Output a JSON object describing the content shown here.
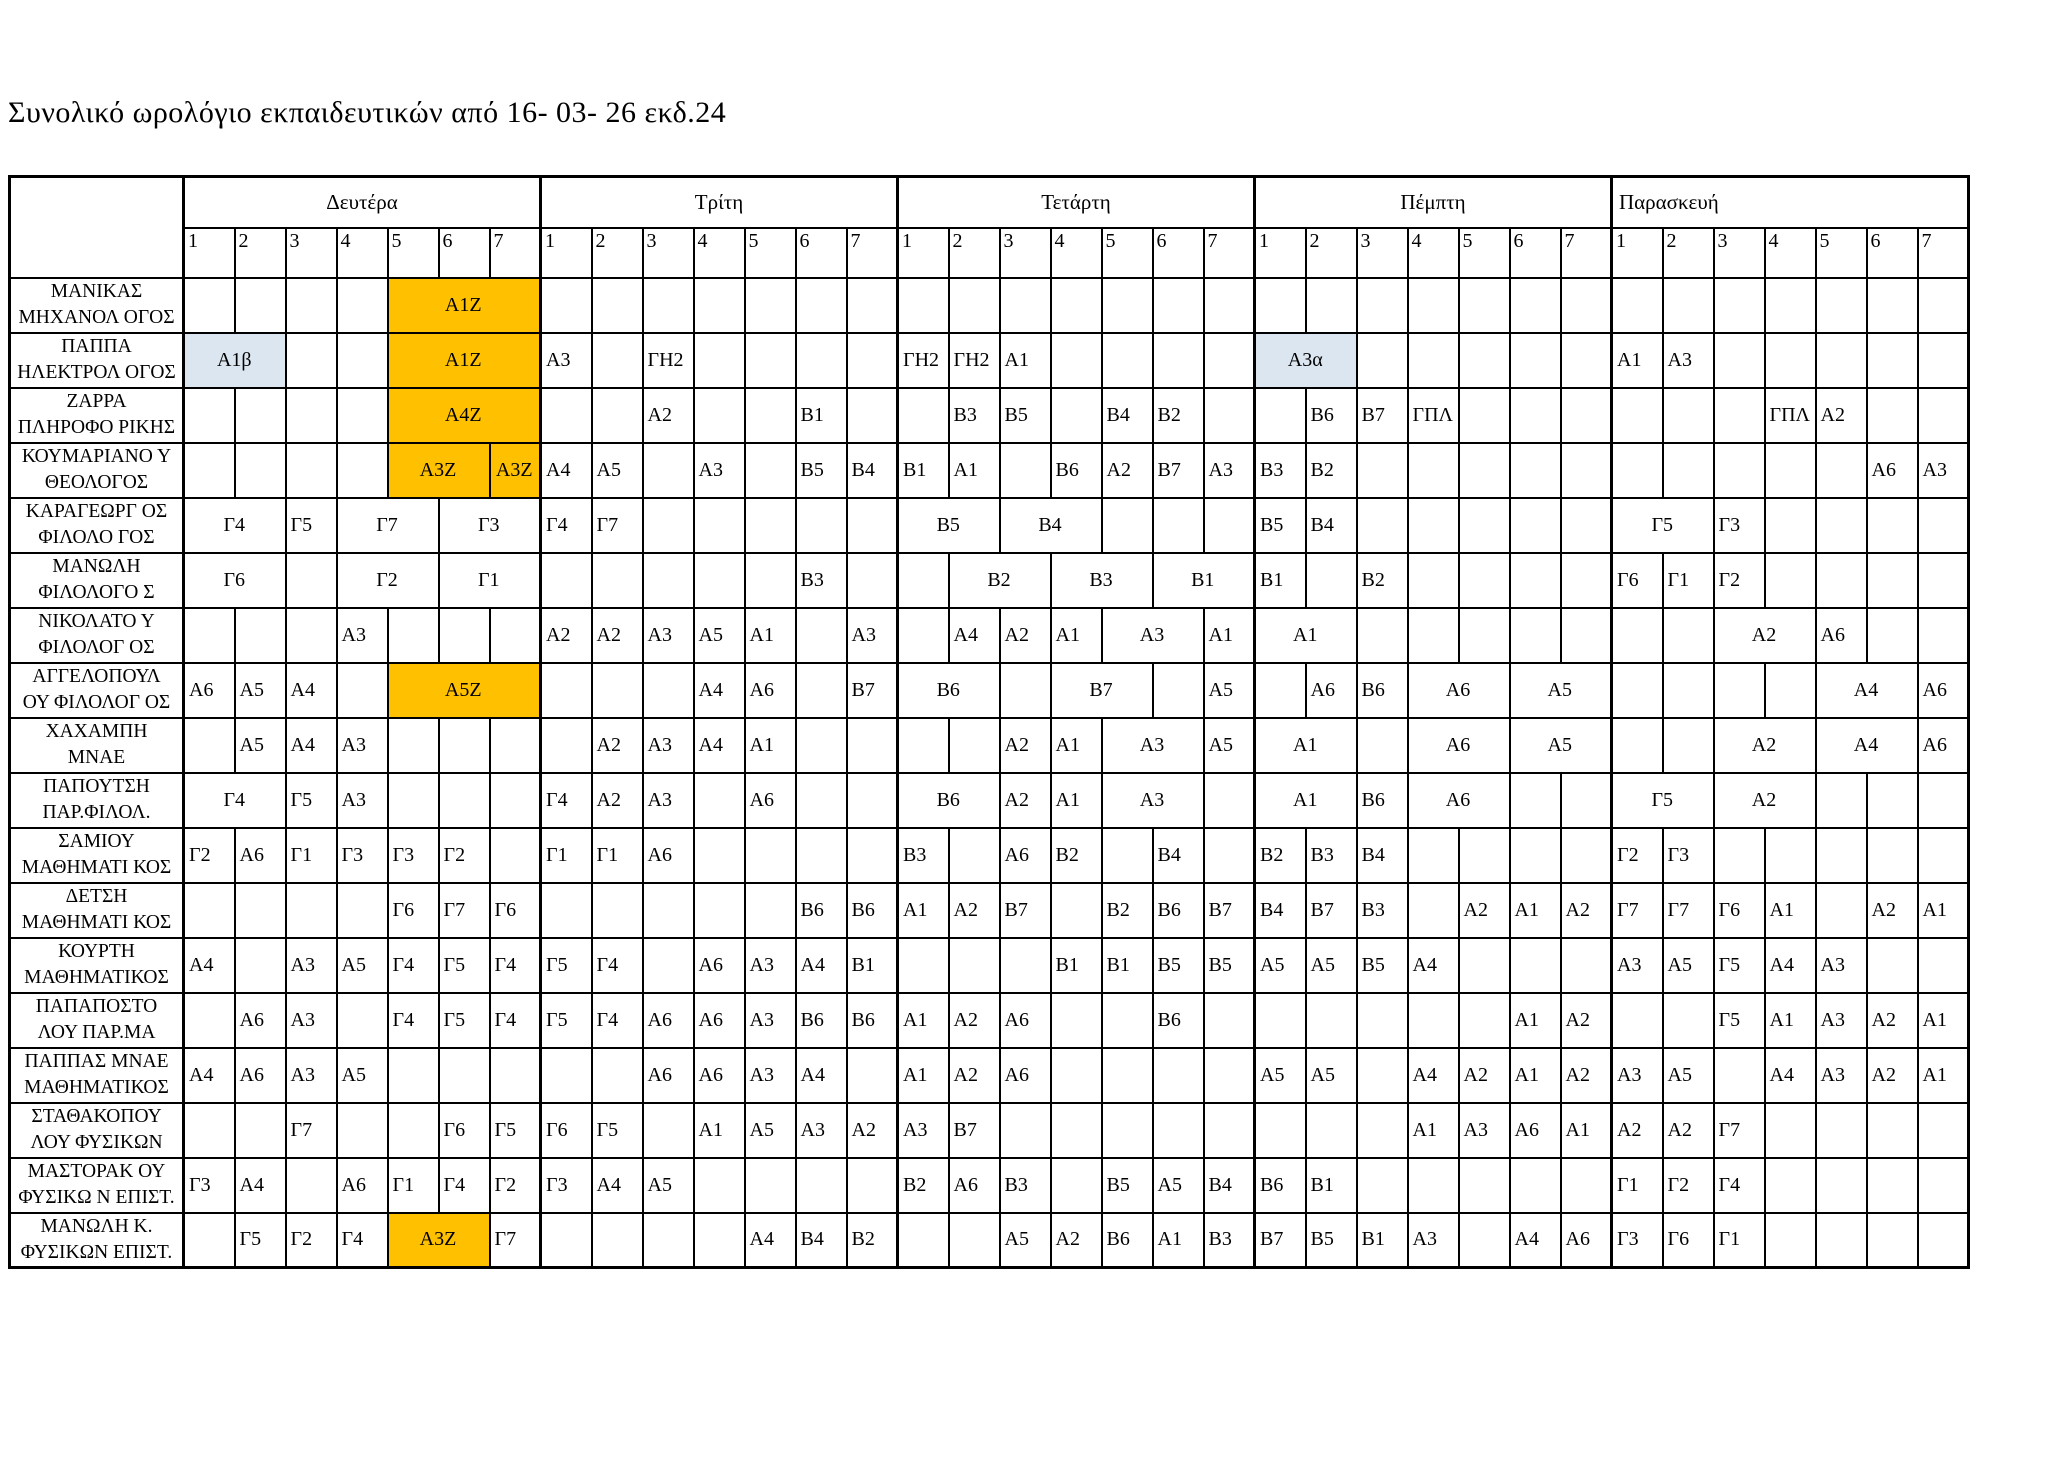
{
  "title": "Συνολικό ωρολόγιο εκπαιδευτικών από 16- 03- 26 εκδ.24",
  "colors": {
    "orange": "#FFC000",
    "blue": "#DCE6F1"
  },
  "days": [
    "Δευτέρα",
    "Τρίτη",
    "Τετάρτη",
    "Πέμπτη",
    "Παρασκευή"
  ],
  "periods": [
    "1",
    "2",
    "3",
    "4",
    "5",
    "6",
    "7"
  ],
  "teachers": [
    {
      "name": [
        "ΜΑΝΙΚΑΣ",
        "ΜΗΧΑΝΟΛ ΟΓΟΣ"
      ],
      "days": [
        [
          "",
          "",
          "",
          "",
          [
            "Α1Ζ",
            3,
            "orange"
          ]
        ],
        [
          "",
          "",
          "",
          "",
          "",
          "",
          ""
        ],
        [
          "",
          "",
          "",
          "",
          "",
          "",
          ""
        ],
        [
          "",
          "",
          "",
          "",
          "",
          "",
          ""
        ],
        [
          "",
          "",
          "",
          "",
          "",
          "",
          ""
        ]
      ]
    },
    {
      "name": [
        "ΠΑΠΠΑ",
        "ΗΛΕΚΤΡΟΛ ΟΓΟΣ"
      ],
      "days": [
        [
          [
            "Α1β",
            2,
            "blue"
          ],
          "",
          "",
          [
            "Α1Ζ",
            3,
            "orange"
          ]
        ],
        [
          "Α3",
          "",
          "ΓΗ2",
          "",
          "",
          "",
          ""
        ],
        [
          "ΓΗ2",
          "ΓΗ2",
          "Α1",
          "",
          "",
          "",
          ""
        ],
        [
          [
            "Α3α",
            2,
            "blue"
          ],
          "",
          "",
          "",
          "",
          ""
        ],
        [
          "Α1",
          "Α3",
          "",
          "",
          "",
          "",
          ""
        ]
      ]
    },
    {
      "name": [
        "ΖΑΡΡΑ",
        "ΠΛΗΡΟΦΟ ΡΙΚΗΣ"
      ],
      "days": [
        [
          "",
          "",
          "",
          "",
          [
            "Α4Ζ",
            3,
            "orange"
          ]
        ],
        [
          "",
          "",
          "Α2",
          "",
          "",
          "Β1",
          ""
        ],
        [
          "",
          "Β3",
          "Β5",
          "",
          "Β4",
          "Β2",
          ""
        ],
        [
          "",
          "Β6",
          "Β7",
          "ΓΠΛ",
          "",
          "",
          ""
        ],
        [
          "",
          "",
          "",
          "ΓΠΛ",
          "Α2",
          "",
          ""
        ]
      ]
    },
    {
      "name": [
        "ΚΟΥΜΑΡΙΑΝΟ Υ",
        "ΘΕΟΛΟΓΟΣ"
      ],
      "days": [
        [
          "",
          "",
          "",
          "",
          [
            "Α3Ζ",
            2,
            "orange"
          ],
          [
            "Α3Ζ",
            1,
            "orange"
          ]
        ],
        [
          "Α4",
          "Α5",
          "",
          "Α3",
          "",
          "Β5",
          "Β4"
        ],
        [
          "Β1",
          "Α1",
          "",
          "Β6",
          "Α2",
          "Β7",
          "Α3"
        ],
        [
          "Β3",
          "Β2",
          "",
          "",
          "",
          "",
          ""
        ],
        [
          "",
          "",
          "",
          "",
          "",
          "Α6",
          "Α3"
        ]
      ]
    },
    {
      "name": [
        "ΚΑΡΑΓΕΩΡΓ ΟΣ",
        "ΦΙΛΟΛΟ ΓΟΣ"
      ],
      "days": [
        [
          [
            "Γ4",
            2
          ],
          "Γ5",
          [
            "Γ7",
            2
          ],
          [
            "Γ3",
            2
          ]
        ],
        [
          "Γ4",
          "Γ7",
          "",
          "",
          "",
          "",
          ""
        ],
        [
          [
            "Β5",
            2
          ],
          [
            "Β4",
            2
          ],
          "",
          "",
          ""
        ],
        [
          "Β5",
          "Β4",
          "",
          "",
          "",
          "",
          ""
        ],
        [
          [
            "Γ5",
            2
          ],
          "Γ3",
          "",
          "",
          "",
          ""
        ]
      ]
    },
    {
      "name": [
        "ΜΑΝΩΛΗ",
        "ΦΙΛΟΛΟΓΟ Σ"
      ],
      "days": [
        [
          [
            "Γ6",
            2
          ],
          "",
          [
            "Γ2",
            2
          ],
          [
            "Γ1",
            2
          ]
        ],
        [
          "",
          "",
          "",
          "",
          "",
          "Β3",
          ""
        ],
        [
          "",
          [
            "Β2",
            2
          ],
          [
            "Β3",
            2
          ],
          [
            "Β1",
            2
          ]
        ],
        [
          "Β1",
          "",
          "Β2",
          "",
          "",
          "",
          ""
        ],
        [
          "Γ6",
          "Γ1",
          "Γ2",
          "",
          "",
          "",
          ""
        ]
      ]
    },
    {
      "name": [
        "ΝΙΚΟΛΑΤΟ Υ",
        "ΦΙΛΟΛΟΓ ΟΣ"
      ],
      "days": [
        [
          "",
          "",
          "",
          "Α3",
          "",
          "",
          ""
        ],
        [
          "Α2",
          "Α2",
          "Α3",
          "Α5",
          "Α1",
          "",
          "Α3"
        ],
        [
          "",
          "Α4",
          "Α2",
          "Α1",
          [
            "Α3",
            2
          ],
          "Α1"
        ],
        [
          [
            "Α1",
            2
          ],
          "",
          "",
          "",
          "",
          ""
        ],
        [
          "",
          "",
          [
            "Α2",
            2
          ],
          "Α6",
          "",
          ""
        ]
      ]
    },
    {
      "name": [
        "ΑΓΓΕΛΟΠΟΥΛ",
        "ΟΥ ΦΙΛΟΛΟΓ ΟΣ"
      ],
      "days": [
        [
          "Α6",
          "Α5",
          "Α4",
          "",
          [
            "Α5Ζ",
            3,
            "orange"
          ]
        ],
        [
          "",
          "",
          "",
          "Α4",
          "Α6",
          "",
          "Β7"
        ],
        [
          [
            "Β6",
            2
          ],
          "",
          [
            "Β7",
            2
          ],
          "",
          "Α5"
        ],
        [
          "",
          "Α6",
          "Β6",
          [
            "Α6",
            2
          ],
          [
            "Α5",
            2
          ]
        ],
        [
          "",
          "",
          "",
          "",
          [
            "Α4",
            2
          ],
          "Α6"
        ]
      ]
    },
    {
      "name": [
        "ΧΑΧΑΜΠΗ",
        "ΜΝΑΕ"
      ],
      "days": [
        [
          "",
          "Α5",
          "Α4",
          "Α3",
          "",
          "",
          ""
        ],
        [
          "",
          "Α2",
          "Α3",
          "Α4",
          "Α1",
          "",
          ""
        ],
        [
          "",
          "",
          "Α2",
          "Α1",
          [
            "Α3",
            2
          ],
          "Α5"
        ],
        [
          [
            "Α1",
            2
          ],
          "",
          [
            "Α6",
            2
          ],
          [
            "Α5",
            2
          ]
        ],
        [
          "",
          "",
          [
            "Α2",
            2
          ],
          [
            "Α4",
            2
          ],
          "Α6"
        ]
      ]
    },
    {
      "name": [
        "ΠΑΠΟΥΤΣΗ",
        "ΠΑΡ.ΦΙΛΟΛ."
      ],
      "days": [
        [
          [
            "Γ4",
            2
          ],
          "Γ5",
          "Α3",
          "",
          "",
          ""
        ],
        [
          "Γ4",
          "Α2",
          "Α3",
          "",
          "Α6",
          "",
          ""
        ],
        [
          [
            "Β6",
            2
          ],
          "Α2",
          "Α1",
          [
            "Α3",
            2
          ],
          ""
        ],
        [
          [
            "Α1",
            2
          ],
          "Β6",
          [
            "Α6",
            2
          ],
          "",
          ""
        ],
        [
          [
            "Γ5",
            2
          ],
          [
            "Α2",
            2
          ],
          "",
          "",
          ""
        ]
      ]
    },
    {
      "name": [
        "ΣΑΜΙΟΥ",
        "ΜΑΘΗΜΑΤΙ ΚΟΣ"
      ],
      "days": [
        [
          "Γ2",
          "Α6",
          "Γ1",
          "Γ3",
          "Γ3",
          "Γ2",
          ""
        ],
        [
          "Γ1",
          "Γ1",
          "Α6",
          "",
          "",
          "",
          ""
        ],
        [
          "Β3",
          "",
          "Α6",
          "Β2",
          "",
          "Β4",
          ""
        ],
        [
          "Β2",
          "Β3",
          "Β4",
          "",
          "",
          "",
          ""
        ],
        [
          "Γ2",
          "Γ3",
          "",
          "",
          "",
          "",
          ""
        ]
      ]
    },
    {
      "name": [
        "ΔΕΤΣΗ",
        "ΜΑΘΗΜΑΤΙ ΚΟΣ"
      ],
      "days": [
        [
          "",
          "",
          "",
          "",
          "Γ6",
          "Γ7",
          "Γ6"
        ],
        [
          "",
          "",
          "",
          "",
          "",
          "Β6",
          "Β6"
        ],
        [
          "Α1",
          "Α2",
          "Β7",
          "",
          "Β2",
          "Β6",
          "Β7"
        ],
        [
          "Β4",
          "Β7",
          "Β3",
          "",
          "Α2",
          "Α1",
          "Α2"
        ],
        [
          "Γ7",
          "Γ7",
          "Γ6",
          "Α1",
          "",
          "Α2",
          "Α1"
        ]
      ]
    },
    {
      "name": [
        "ΚΟΥΡΤΗ",
        "ΜΑΘΗΜΑΤΙΚΟΣ"
      ],
      "days": [
        [
          "Α4",
          "",
          "Α3",
          "Α5",
          "Γ4",
          "Γ5",
          "Γ4"
        ],
        [
          "Γ5",
          "Γ4",
          "",
          "Α6",
          "Α3",
          "Α4",
          "Β1"
        ],
        [
          "",
          "",
          "",
          "Β1",
          "Β1",
          "Β5",
          "Β5"
        ],
        [
          "Α5",
          "Α5",
          "Β5",
          "Α4",
          "",
          "",
          ""
        ],
        [
          "Α3",
          "Α5",
          "Γ5",
          "Α4",
          "Α3",
          "",
          ""
        ]
      ]
    },
    {
      "name": [
        "ΠΑΠΑΠΟΣΤΟ",
        "ΛΟΥ ΠΑΡ.ΜΑ"
      ],
      "days": [
        [
          "",
          "Α6",
          "Α3",
          "",
          "Γ4",
          "Γ5",
          "Γ4"
        ],
        [
          "Γ5",
          "Γ4",
          "Α6",
          "Α6",
          "Α3",
          "Β6",
          "Β6"
        ],
        [
          "Α1",
          "Α2",
          "Α6",
          "",
          "",
          "Β6",
          ""
        ],
        [
          "",
          "",
          "",
          "",
          "",
          "Α1",
          "Α2"
        ],
        [
          "",
          "",
          "Γ5",
          "Α1",
          "Α3",
          "Α2",
          "Α1"
        ]
      ]
    },
    {
      "name": [
        "ΠΑΠΠΑΣ ΜΝΑΕ",
        "ΜΑΘΗΜΑΤΙΚΟΣ"
      ],
      "days": [
        [
          "Α4",
          "Α6",
          "Α3",
          "Α5",
          "",
          "",
          ""
        ],
        [
          "",
          "",
          "Α6",
          "Α6",
          "Α3",
          "Α4",
          ""
        ],
        [
          "Α1",
          "Α2",
          "Α6",
          "",
          "",
          "",
          ""
        ],
        [
          "Α5",
          "Α5",
          "",
          "Α4",
          "Α2",
          "Α1",
          "Α2"
        ],
        [
          "Α3",
          "Α5",
          "",
          "Α4",
          "Α3",
          "Α2",
          "Α1"
        ]
      ]
    },
    {
      "name": [
        "ΣΤΑΘΑΚΟΠΟΥ",
        "ΛΟΥ ΦΥΣΙΚΩΝ"
      ],
      "days": [
        [
          "",
          "",
          "Γ7",
          "",
          "",
          "Γ6",
          "Γ5"
        ],
        [
          "Γ6",
          "Γ5",
          "",
          "Α1",
          "Α5",
          "Α3",
          "Α2"
        ],
        [
          "Α3",
          "Β7",
          "",
          "",
          "",
          "",
          ""
        ],
        [
          "",
          "",
          "",
          "Α1",
          "Α3",
          "Α6",
          "Α1"
        ],
        [
          "Α2",
          "Α2",
          "Γ7",
          "",
          "",
          "",
          ""
        ]
      ]
    },
    {
      "name": [
        "ΜΑΣΤΟΡΑΚ ΟΥ",
        "ΦΥΣΙΚΩ Ν ΕΠΙΣΤ."
      ],
      "days": [
        [
          "Γ3",
          "Α4",
          "",
          "Α6",
          "Γ1",
          "Γ4",
          "Γ2"
        ],
        [
          "Γ3",
          "Α4",
          "Α5",
          "",
          "",
          "",
          ""
        ],
        [
          "Β2",
          "Α6",
          "Β3",
          "",
          "Β5",
          "Α5",
          "Β4"
        ],
        [
          "Β6",
          "Β1",
          "",
          "",
          "",
          "",
          ""
        ],
        [
          "Γ1",
          "Γ2",
          "Γ4",
          "",
          "",
          "",
          ""
        ]
      ]
    },
    {
      "name": [
        "ΜΑΝΩΛΗ Κ.",
        "ΦΥΣΙΚΩΝ ΕΠΙΣΤ."
      ],
      "days": [
        [
          "",
          "Γ5",
          "Γ2",
          "Γ4",
          [
            "Α3Ζ",
            2,
            "orange"
          ],
          "Γ7"
        ],
        [
          "",
          "",
          "",
          "",
          "Α4",
          "Β4",
          "Β2"
        ],
        [
          "",
          "",
          "Α5",
          "Α2",
          "Β6",
          "Α1",
          "Β3"
        ],
        [
          "Β7",
          "Β5",
          "Β1",
          "Α3",
          "",
          "Α4",
          "Α6"
        ],
        [
          "Γ3",
          "Γ6",
          "Γ1",
          "",
          "",
          "",
          ""
        ]
      ]
    }
  ]
}
